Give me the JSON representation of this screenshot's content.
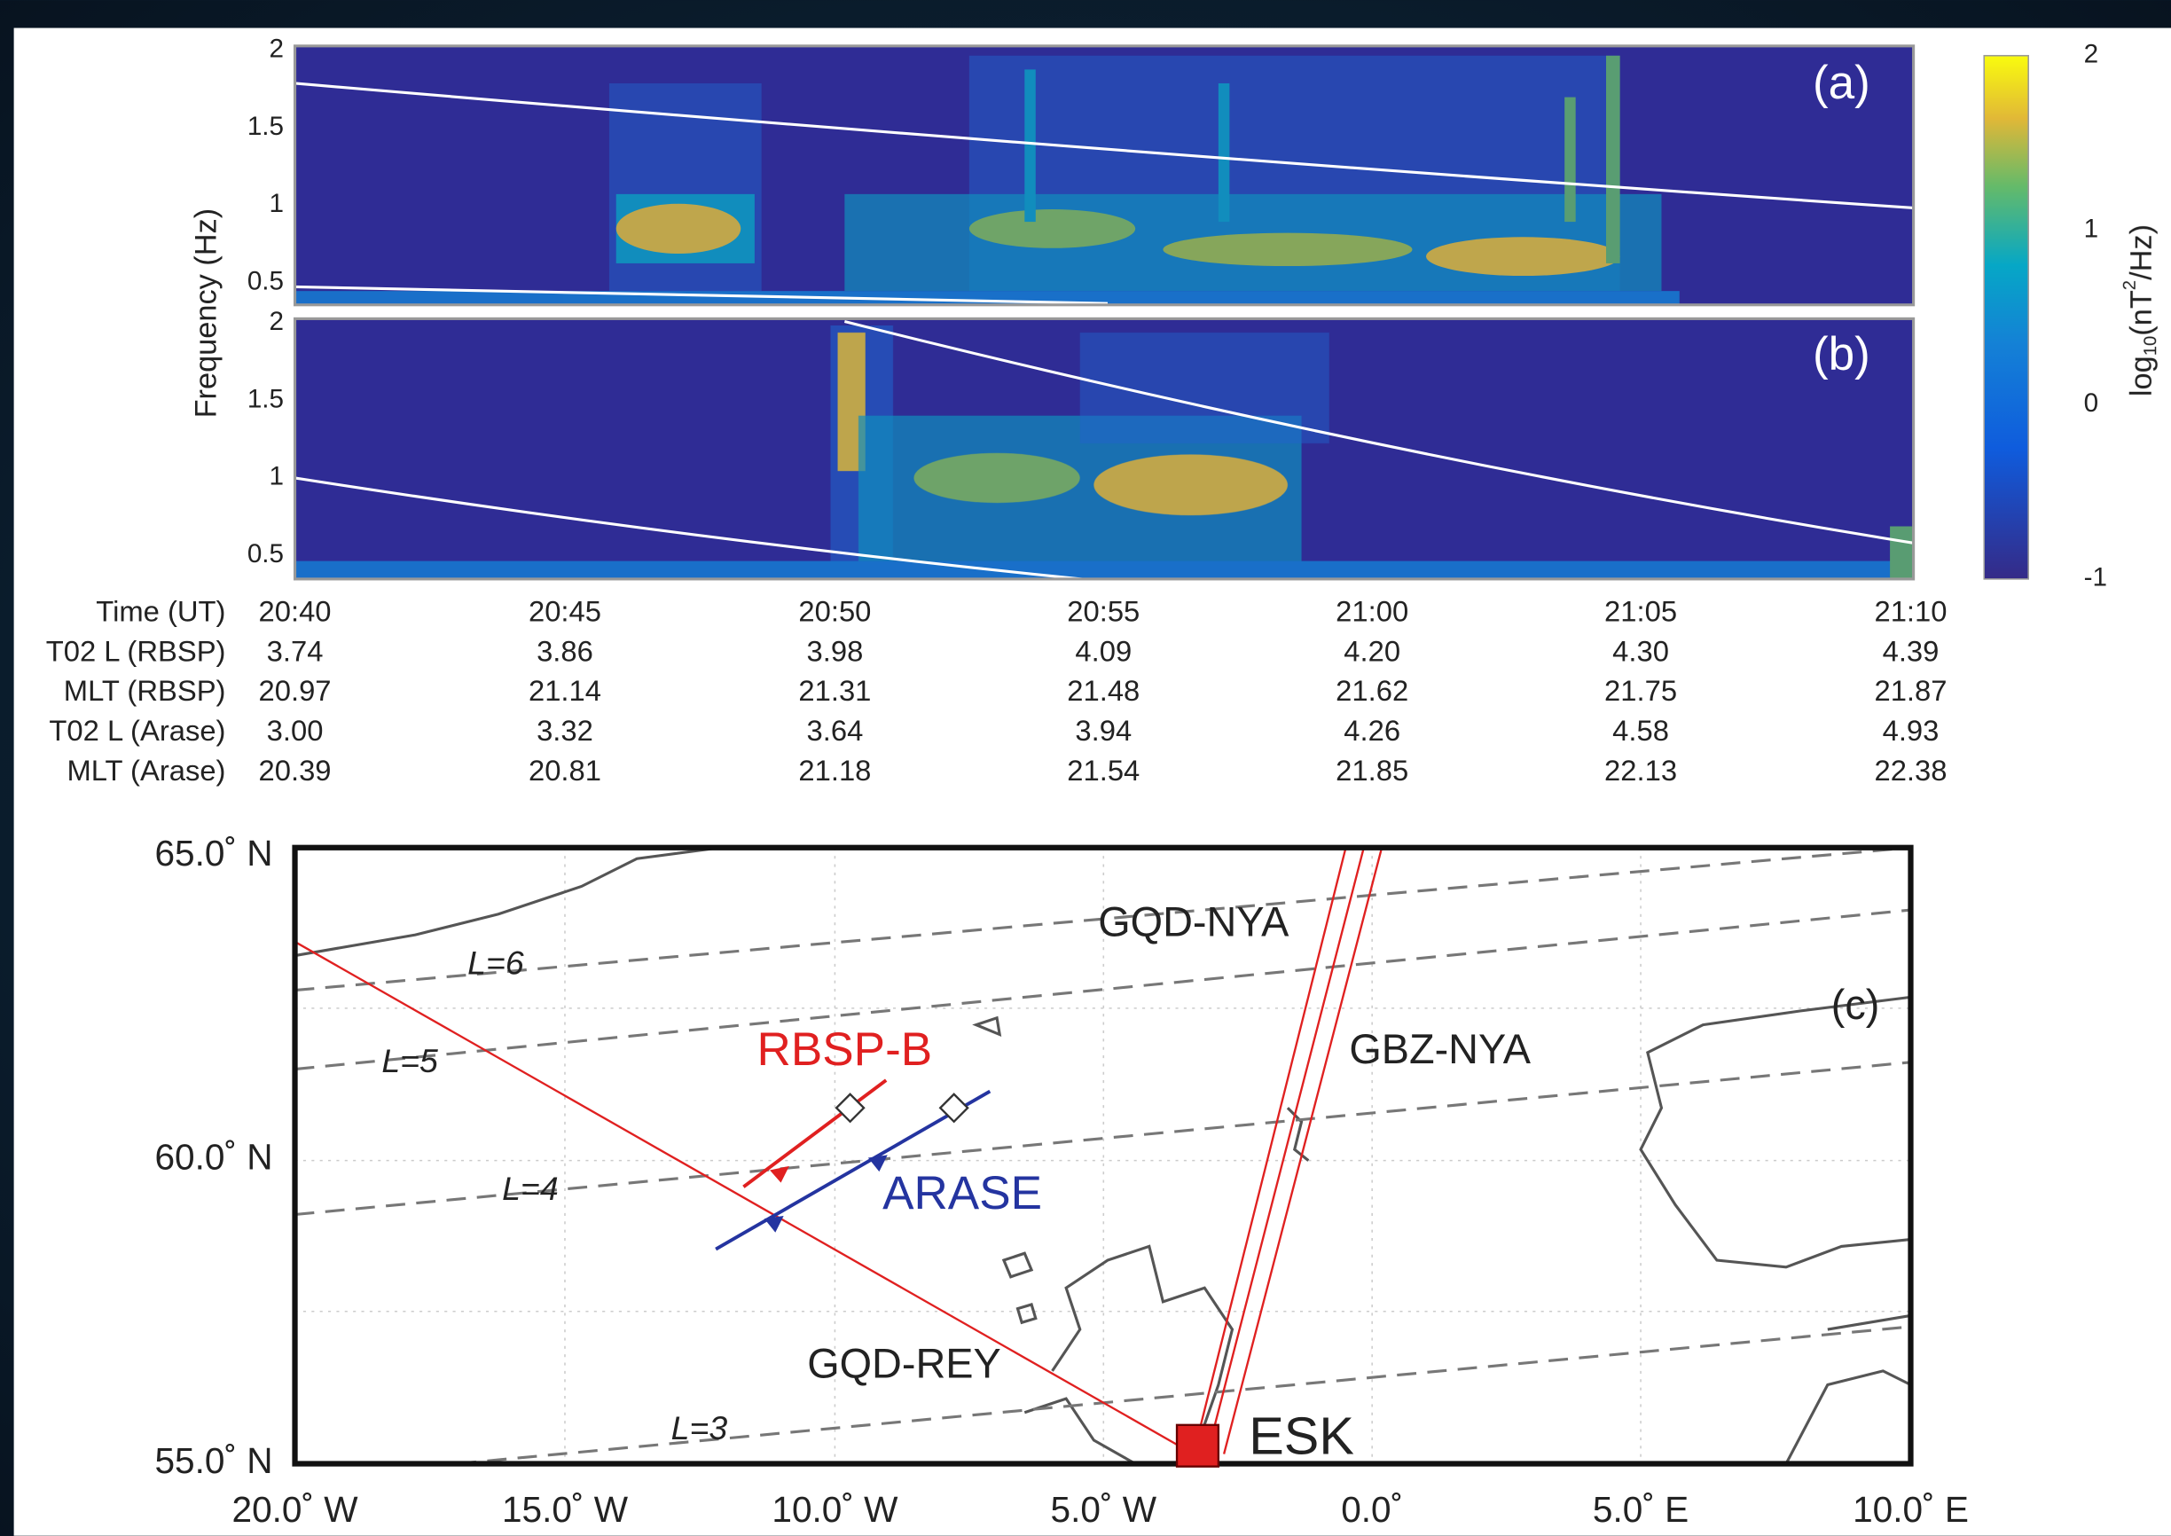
{
  "panels": {
    "a": {
      "label": "(a)",
      "yticks": [
        "2",
        "1.5",
        "1",
        "0.5"
      ]
    },
    "b": {
      "label": "(b)",
      "yticks": [
        "2",
        "1.5",
        "1",
        "0.5"
      ]
    },
    "ylabel": "Frequency (Hz)"
  },
  "colorbar": {
    "label": [
      "log",
      "10",
      "(nT",
      "2",
      "/Hz)"
    ],
    "ticks": [
      "2",
      "1",
      "0",
      "-1"
    ]
  },
  "table": {
    "row_headers": [
      "Time (UT)",
      "T02 L (RBSP)",
      "MLT (RBSP)",
      "T02 L (Arase)",
      "MLT (Arase)"
    ],
    "rows": [
      [
        "20:40",
        "20:45",
        "20:50",
        "20:55",
        "21:00",
        "21:05",
        "21:10"
      ],
      [
        "3.74",
        "3.86",
        "3.98",
        "4.09",
        "4.20",
        "4.30",
        "4.39"
      ],
      [
        "20.97",
        "21.14",
        "21.31",
        "21.48",
        "21.62",
        "21.75",
        "21.87"
      ],
      [
        "3.00",
        "3.32",
        "3.64",
        "3.94",
        "4.26",
        "4.58",
        "4.93"
      ],
      [
        "20.39",
        "20.81",
        "21.18",
        "21.54",
        "21.85",
        "22.13",
        "22.38"
      ]
    ]
  },
  "map": {
    "label": "(c)",
    "lat_ticks": [
      "65.0˚ N",
      "60.0˚ N",
      "55.0˚ N"
    ],
    "lon_ticks": [
      "20.0˚ W",
      "15.0˚ W",
      "10.0˚ W",
      "5.0˚ W",
      "0.0˚",
      "5.0˚ E",
      "10.0˚ E"
    ],
    "l_shells": [
      "L=6",
      "L=5",
      "L=4",
      "L=3"
    ],
    "paths": [
      "GQD-NYA",
      "GBZ-NYA",
      "GQD-REY"
    ],
    "satellites": [
      "RBSP-B",
      "ARASE"
    ],
    "station": "ESK"
  }
}
